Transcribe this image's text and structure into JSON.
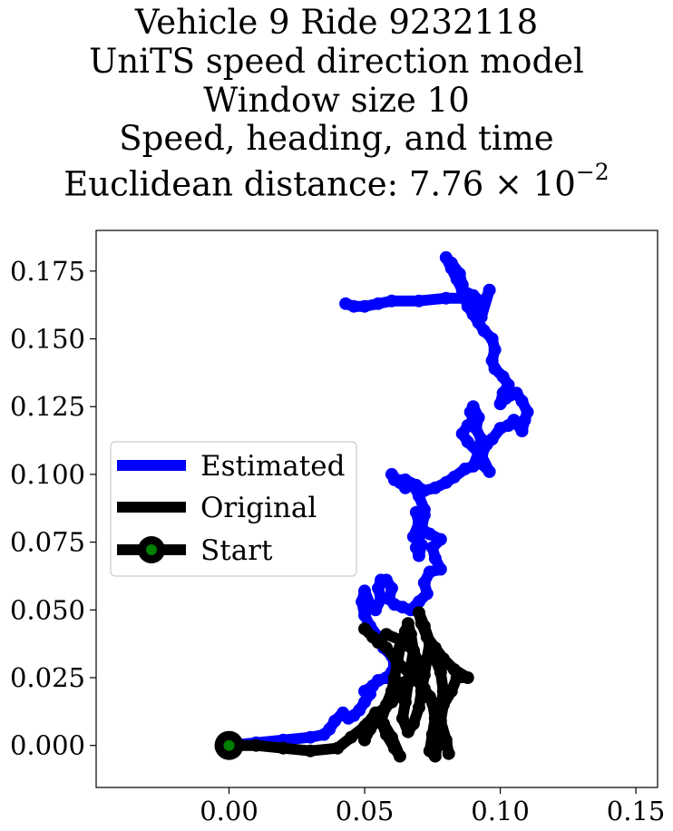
{
  "chart_data": {
    "type": "line",
    "title_lines": [
      "Vehicle 9 Ride 9232118",
      "UniTS speed direction model",
      "Window size 10",
      "Speed, heading, and time",
      "Euclidean distance: 7.76 × 10"
    ],
    "title_exponent": "−2",
    "xlabel": "",
    "ylabel": "",
    "xlim": [
      -0.049,
      0.158
    ],
    "ylim": [
      -0.0155,
      0.19
    ],
    "xticks": [
      0.0,
      0.05,
      0.1,
      0.15
    ],
    "xtick_labels": [
      "0.00",
      "0.05",
      "0.10",
      "0.15"
    ],
    "yticks": [
      0.0,
      0.025,
      0.05,
      0.075,
      0.1,
      0.125,
      0.15,
      0.175
    ],
    "ytick_labels": [
      "0.000",
      "0.025",
      "0.050",
      "0.075",
      "0.100",
      "0.125",
      "0.150",
      "0.175"
    ],
    "legend_position": "center-left",
    "series": [
      {
        "name": "Estimated",
        "color": "#0000ff",
        "points": [
          [
            0.0,
            0.0
          ],
          [
            0.01,
            0.001
          ],
          [
            0.02,
            0.002
          ],
          [
            0.03,
            0.003
          ],
          [
            0.035,
            0.004
          ],
          [
            0.037,
            0.006
          ],
          [
            0.039,
            0.009
          ],
          [
            0.042,
            0.012
          ],
          [
            0.044,
            0.01
          ],
          [
            0.046,
            0.011
          ],
          [
            0.048,
            0.013
          ],
          [
            0.05,
            0.016
          ],
          [
            0.052,
            0.019
          ],
          [
            0.05,
            0.02
          ],
          [
            0.053,
            0.022
          ],
          [
            0.055,
            0.024
          ],
          [
            0.058,
            0.025
          ],
          [
            0.06,
            0.027
          ],
          [
            0.061,
            0.03
          ],
          [
            0.06,
            0.033
          ],
          [
            0.057,
            0.036
          ],
          [
            0.055,
            0.04
          ],
          [
            0.052,
            0.044
          ],
          [
            0.05,
            0.048
          ],
          [
            0.049,
            0.053
          ],
          [
            0.05,
            0.057
          ],
          [
            0.052,
            0.052
          ],
          [
            0.054,
            0.05
          ],
          [
            0.056,
            0.054
          ],
          [
            0.055,
            0.058
          ],
          [
            0.056,
            0.061
          ],
          [
            0.058,
            0.061
          ],
          [
            0.06,
            0.058
          ],
          [
            0.059,
            0.054
          ],
          [
            0.061,
            0.052
          ],
          [
            0.064,
            0.051
          ],
          [
            0.067,
            0.05
          ],
          [
            0.07,
            0.053
          ],
          [
            0.073,
            0.056
          ],
          [
            0.072,
            0.06
          ],
          [
            0.074,
            0.064
          ],
          [
            0.078,
            0.065
          ],
          [
            0.076,
            0.069
          ],
          [
            0.075,
            0.073
          ],
          [
            0.078,
            0.076
          ],
          [
            0.074,
            0.078
          ],
          [
            0.071,
            0.08
          ],
          [
            0.072,
            0.085
          ],
          [
            0.069,
            0.086
          ],
          [
            0.07,
            0.082
          ],
          [
            0.068,
            0.077
          ],
          [
            0.071,
            0.074
          ],
          [
            0.07,
            0.07
          ],
          [
            0.069,
            0.073
          ],
          [
            0.071,
            0.079
          ],
          [
            0.07,
            0.084
          ],
          [
            0.072,
            0.087
          ],
          [
            0.07,
            0.092
          ],
          [
            0.068,
            0.096
          ],
          [
            0.065,
            0.095
          ],
          [
            0.063,
            0.097
          ],
          [
            0.06,
            0.1
          ],
          [
            0.061,
            0.098
          ],
          [
            0.065,
            0.098
          ],
          [
            0.069,
            0.096
          ],
          [
            0.072,
            0.094
          ],
          [
            0.076,
            0.095
          ],
          [
            0.08,
            0.097
          ],
          [
            0.083,
            0.099
          ],
          [
            0.087,
            0.102
          ],
          [
            0.09,
            0.103
          ],
          [
            0.092,
            0.108
          ],
          [
            0.088,
            0.112
          ],
          [
            0.086,
            0.115
          ],
          [
            0.088,
            0.118
          ],
          [
            0.09,
            0.12
          ],
          [
            0.089,
            0.123
          ],
          [
            0.09,
            0.125
          ],
          [
            0.092,
            0.121
          ],
          [
            0.091,
            0.117
          ],
          [
            0.093,
            0.113
          ],
          [
            0.095,
            0.111
          ],
          [
            0.093,
            0.107
          ],
          [
            0.096,
            0.101
          ],
          [
            0.093,
            0.104
          ],
          [
            0.094,
            0.11
          ],
          [
            0.097,
            0.113
          ],
          [
            0.1,
            0.117
          ],
          [
            0.103,
            0.118
          ],
          [
            0.105,
            0.12
          ],
          [
            0.108,
            0.116
          ],
          [
            0.109,
            0.12
          ],
          [
            0.11,
            0.123
          ],
          [
            0.108,
            0.127
          ],
          [
            0.106,
            0.13
          ],
          [
            0.102,
            0.128
          ],
          [
            0.1,
            0.126
          ],
          [
            0.101,
            0.13
          ],
          [
            0.103,
            0.133
          ],
          [
            0.101,
            0.136
          ],
          [
            0.098,
            0.139
          ],
          [
            0.097,
            0.142
          ],
          [
            0.098,
            0.146
          ],
          [
            0.097,
            0.15
          ],
          [
            0.094,
            0.153
          ],
          [
            0.092,
            0.156
          ],
          [
            0.09,
            0.159
          ],
          [
            0.088,
            0.162
          ],
          [
            0.087,
            0.165
          ],
          [
            0.086,
            0.17
          ],
          [
            0.085,
            0.174
          ],
          [
            0.082,
            0.178
          ],
          [
            0.08,
            0.18
          ],
          [
            0.082,
            0.176
          ],
          [
            0.084,
            0.172
          ],
          [
            0.086,
            0.168
          ],
          [
            0.09,
            0.166
          ],
          [
            0.094,
            0.163
          ],
          [
            0.096,
            0.168
          ],
          [
            0.093,
            0.158
          ],
          [
            0.09,
            0.161
          ],
          [
            0.087,
            0.165
          ],
          [
            0.08,
            0.165
          ],
          [
            0.07,
            0.164
          ],
          [
            0.06,
            0.164
          ],
          [
            0.055,
            0.163
          ],
          [
            0.05,
            0.162
          ],
          [
            0.046,
            0.162
          ],
          [
            0.043,
            0.163
          ]
        ]
      },
      {
        "name": "Original",
        "color": "#000000",
        "points": [
          [
            0.0,
            0.0
          ],
          [
            0.01,
            0.0
          ],
          [
            0.02,
            -0.001
          ],
          [
            0.03,
            -0.002
          ],
          [
            0.04,
            -0.001
          ],
          [
            0.045,
            0.003
          ],
          [
            0.05,
            0.007
          ],
          [
            0.055,
            0.012
          ],
          [
            0.06,
            0.016
          ],
          [
            0.064,
            0.02
          ],
          [
            0.068,
            0.025
          ],
          [
            0.07,
            0.03
          ],
          [
            0.068,
            0.035
          ],
          [
            0.063,
            0.039
          ],
          [
            0.058,
            0.041
          ],
          [
            0.055,
            0.038
          ],
          [
            0.05,
            0.043
          ],
          [
            0.053,
            0.04
          ],
          [
            0.058,
            0.036
          ],
          [
            0.062,
            0.031
          ],
          [
            0.067,
            0.026
          ],
          [
            0.071,
            0.022
          ],
          [
            0.074,
            0.018
          ],
          [
            0.076,
            0.012
          ],
          [
            0.078,
            0.006
          ],
          [
            0.08,
            0.001
          ],
          [
            0.081,
            -0.003
          ],
          [
            0.08,
            0.002
          ],
          [
            0.078,
            0.009
          ],
          [
            0.079,
            0.015
          ],
          [
            0.082,
            0.02
          ],
          [
            0.084,
            0.025
          ],
          [
            0.088,
            0.025
          ],
          [
            0.083,
            0.028
          ],
          [
            0.079,
            0.032
          ],
          [
            0.076,
            0.036
          ],
          [
            0.073,
            0.04
          ],
          [
            0.071,
            0.045
          ],
          [
            0.07,
            0.049
          ],
          [
            0.072,
            0.044
          ],
          [
            0.074,
            0.038
          ],
          [
            0.073,
            0.032
          ],
          [
            0.072,
            0.026
          ],
          [
            0.071,
            0.02
          ],
          [
            0.07,
            0.014
          ],
          [
            0.068,
            0.008
          ],
          [
            0.066,
            0.005
          ],
          [
            0.064,
            0.01
          ],
          [
            0.065,
            0.016
          ],
          [
            0.066,
            0.023
          ],
          [
            0.067,
            0.029
          ],
          [
            0.068,
            0.035
          ],
          [
            0.067,
            0.041
          ],
          [
            0.066,
            0.045
          ],
          [
            0.065,
            0.042
          ],
          [
            0.063,
            0.036
          ],
          [
            0.062,
            0.03
          ],
          [
            0.061,
            0.025
          ],
          [
            0.06,
            0.02
          ],
          [
            0.058,
            0.015
          ],
          [
            0.056,
            0.009
          ],
          [
            0.058,
            0.004
          ],
          [
            0.061,
            -0.001
          ],
          [
            0.063,
            -0.004
          ],
          [
            0.06,
            0.003
          ],
          [
            0.057,
            0.008
          ],
          [
            0.054,
            0.012
          ],
          [
            0.051,
            0.008
          ],
          [
            0.05,
            0.002
          ],
          [
            0.052,
            0.006
          ],
          [
            0.056,
            0.011
          ],
          [
            0.06,
            0.017
          ],
          [
            0.064,
            0.023
          ],
          [
            0.068,
            0.026
          ],
          [
            0.072,
            0.021
          ],
          [
            0.075,
            0.016
          ],
          [
            0.076,
            0.01
          ],
          [
            0.075,
            0.004
          ],
          [
            0.074,
            -0.002
          ],
          [
            0.076,
            -0.004
          ],
          [
            0.077,
            0.001
          ],
          [
            0.077,
            0.007
          ],
          [
            0.078,
            0.014
          ],
          [
            0.079,
            0.02
          ],
          [
            0.078,
            0.027
          ],
          [
            0.076,
            0.032
          ],
          [
            0.074,
            0.035
          ],
          [
            0.072,
            0.03
          ],
          [
            0.071,
            0.024
          ],
          [
            0.072,
            0.018
          ]
        ]
      }
    ],
    "start_point": {
      "name": "Start",
      "x": 0.0,
      "y": 0.0,
      "marker_color": "#008000",
      "edge_color": "#000000"
    }
  }
}
